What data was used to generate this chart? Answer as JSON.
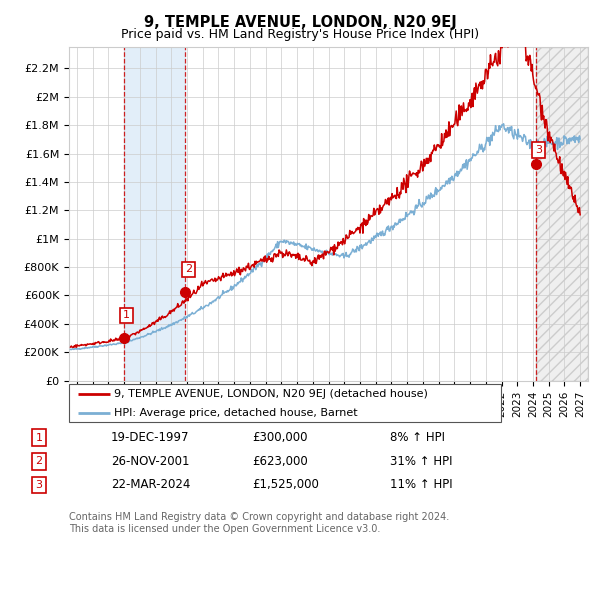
{
  "title": "9, TEMPLE AVENUE, LONDON, N20 9EJ",
  "subtitle": "Price paid vs. HM Land Registry's House Price Index (HPI)",
  "ylabel_ticks": [
    "£0",
    "£200K",
    "£400K",
    "£600K",
    "£800K",
    "£1M",
    "£1.2M",
    "£1.4M",
    "£1.6M",
    "£1.8M",
    "£2M",
    "£2.2M"
  ],
  "ytick_values": [
    0,
    200000,
    400000,
    600000,
    800000,
    1000000,
    1200000,
    1400000,
    1600000,
    1800000,
    2000000,
    2200000
  ],
  "ylim": [
    0,
    2350000
  ],
  "xlim_start": 1994.5,
  "xlim_end": 2027.5,
  "sale_dates": [
    1997.97,
    2001.9,
    2024.22
  ],
  "sale_prices": [
    300000,
    623000,
    1525000
  ],
  "sale_labels": [
    "1",
    "2",
    "3"
  ],
  "legend_line1": "9, TEMPLE AVENUE, LONDON, N20 9EJ (detached house)",
  "legend_line2": "HPI: Average price, detached house, Barnet",
  "table_rows": [
    [
      "1",
      "19-DEC-1997",
      "£300,000",
      "8% ↑ HPI"
    ],
    [
      "2",
      "26-NOV-2001",
      "£623,000",
      "31% ↑ HPI"
    ],
    [
      "3",
      "22-MAR-2024",
      "£1,525,000",
      "11% ↑ HPI"
    ]
  ],
  "footnote1": "Contains HM Land Registry data © Crown copyright and database right 2024.",
  "footnote2": "This data is licensed under the Open Government Licence v3.0.",
  "hpi_color": "#7bafd4",
  "sale_line_color": "#cc0000",
  "sale_dot_color": "#cc0000",
  "box_color": "#cc0000",
  "shade1_start": 1997.97,
  "shade1_end": 2001.9,
  "shade2_start": 2024.22,
  "shade2_end": 2027.5
}
